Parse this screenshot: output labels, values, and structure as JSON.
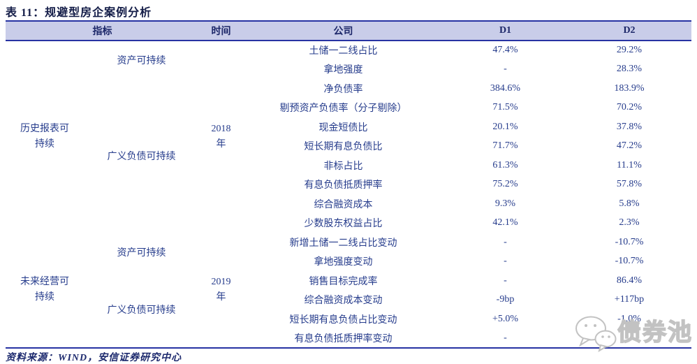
{
  "title": "表 11：规避型房企案例分析",
  "columns": {
    "indicator": "指标",
    "time": "时间",
    "company": "公司",
    "d1": "D1",
    "d2": "D2"
  },
  "sections": [
    {
      "group": "历史报表可持续",
      "time": "2018年",
      "subgroups": [
        {
          "label": "资产可持续",
          "rows": [
            {
              "company": "土储一二线占比",
              "d1": "47.4%",
              "d2": "29.2%"
            },
            {
              "company": "拿地强度",
              "d1": "-",
              "d2": "28.3%"
            }
          ]
        },
        {
          "label": "广义负债可持续",
          "rows": [
            {
              "company": "净负债率",
              "d1": "384.6%",
              "d2": "183.9%"
            },
            {
              "company": "剔预资产负债率（分子剔除）",
              "d1": "71.5%",
              "d2": "70.2%"
            },
            {
              "company": "现金短债比",
              "d1": "20.1%",
              "d2": "37.8%"
            },
            {
              "company": "短长期有息负债比",
              "d1": "71.7%",
              "d2": "47.2%"
            },
            {
              "company": "非标占比",
              "d1": "61.3%",
              "d2": "11.1%"
            },
            {
              "company": "有息负债抵质押率",
              "d1": "75.2%",
              "d2": "57.8%"
            },
            {
              "company": "综合融资成本",
              "d1": "9.3%",
              "d2": "5.8%"
            },
            {
              "company": "少数股东权益占比",
              "d1": "42.1%",
              "d2": "2.3%"
            }
          ]
        }
      ]
    },
    {
      "group": "未来经营可持续",
      "time": "2019年",
      "subgroups": [
        {
          "label": "资产可持续",
          "rows": [
            {
              "company": "新增土储一二线占比变动",
              "d1": "-",
              "d2": "-10.7%"
            },
            {
              "company": "拿地强度变动",
              "d1": "-",
              "d2": "-10.7%"
            }
          ]
        },
        {
          "label": "广义负债可持续",
          "rows": [
            {
              "company": "销售目标完成率",
              "d1": "-",
              "d2": "86.4%"
            },
            {
              "company": "综合融资成本变动",
              "d1": "-9bp",
              "d2": "+117bp"
            },
            {
              "company": "短长期有息负债占比变动",
              "d1": "+5.0%",
              "d2": "-1.0%"
            },
            {
              "company": "有息负债抵质押率变动",
              "d1": "-",
              "d2": ""
            }
          ]
        }
      ]
    }
  ],
  "footer": {
    "source": "资料来源：WIND，安信证券研究中心"
  },
  "watermark": {
    "text": "债券池",
    "icon": "wechat-chat-bubbles-icon"
  },
  "colors": {
    "border_navy": "#2733a3",
    "header_bg": "#c9cde9",
    "text_navy": "#1d2a6e",
    "value_blue": "#2a3f8f",
    "watermark_gray": "#c2c2c2"
  }
}
